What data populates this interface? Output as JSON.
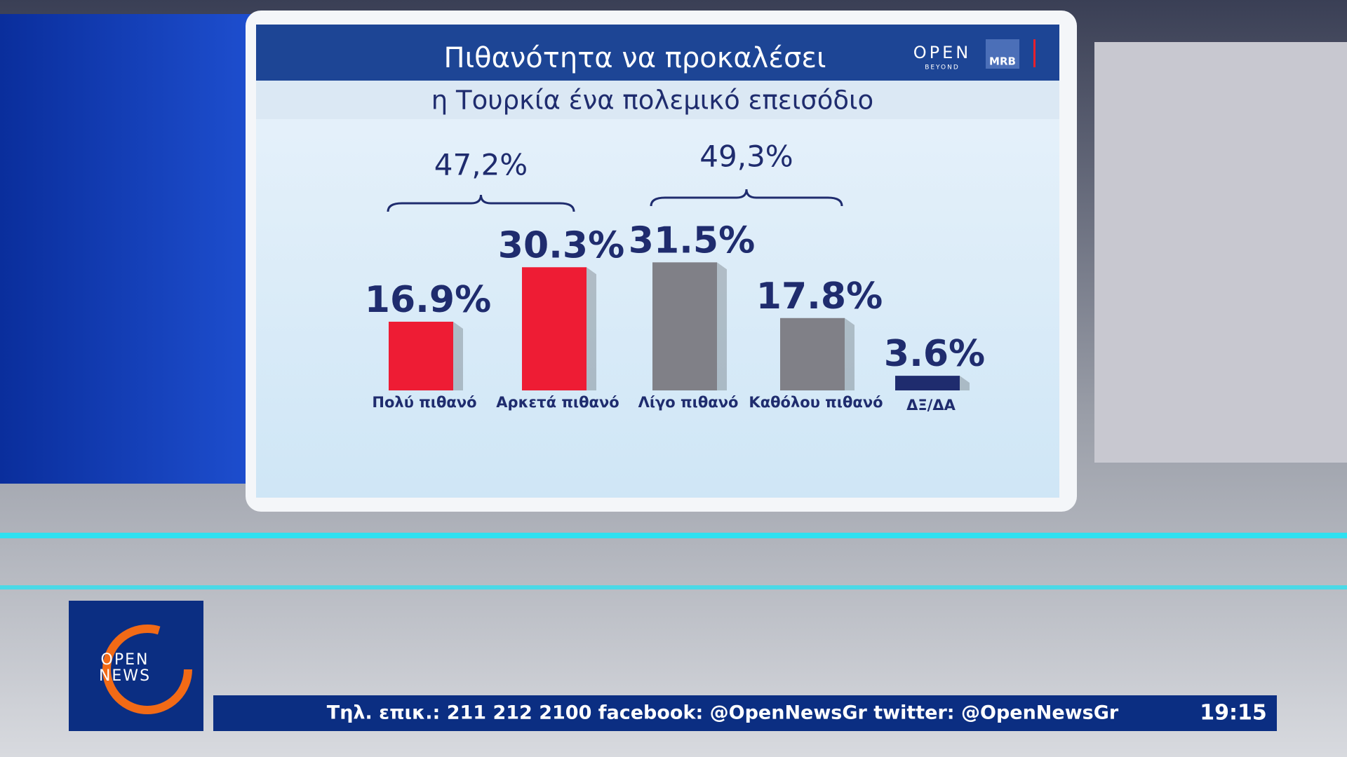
{
  "chart_data": {
    "type": "bar",
    "title": "Πιθανότητα να προκαλέσει",
    "subtitle": "η Τουρκία ένα πολεμικό επεισόδιο",
    "categories": [
      "Πολύ πιθανό",
      "Αρκετά πιθανό",
      "Λίγο πιθανό",
      "Καθόλου πιθανό",
      "ΔΞ/ΔΑ"
    ],
    "values": [
      16.9,
      30.3,
      31.5,
      17.8,
      3.6
    ],
    "value_labels": [
      "16.9%",
      "30.3%",
      "31.5%",
      "17.8%",
      "3.6%"
    ],
    "colors": [
      "#ee1c34",
      "#ee1c34",
      "#808087",
      "#808087",
      "#1f2c6e"
    ],
    "annotations": [
      "47,2%",
      "49,3%"
    ]
  },
  "logos": {
    "channel": "OPEN",
    "channel_sub": "BEYOND",
    "pollster": "MRB",
    "corner_top": "OPEN",
    "corner_bottom": "NEWS"
  },
  "ticker": {
    "text": "Τηλ. επικ.: 211 212 2100 facebook: @OpenNewsGr twitter: @OpenNewsGr",
    "time": "19:15"
  }
}
